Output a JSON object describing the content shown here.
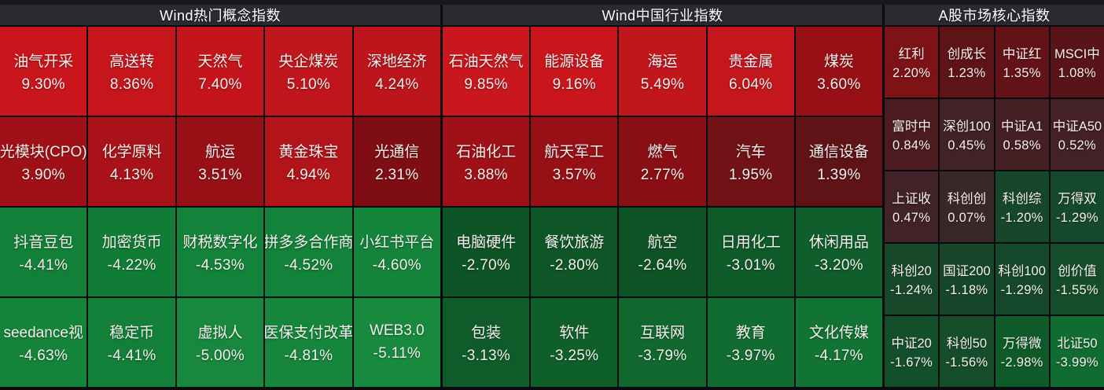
{
  "colors": {
    "header_bg": "#2a2b2f",
    "grid_line": "#0a0b0e",
    "top_strip": "#15171c",
    "text": "#f6f0ee",
    "positive_red_max": "#ca161d",
    "negative_green_max": "#188a3e"
  },
  "sections": [
    {
      "title": "Wind热门概念指数",
      "cells": [
        {
          "name": "油气开采",
          "change": "9.30%",
          "color": "#c9151c"
        },
        {
          "name": "高送转",
          "change": "8.36%",
          "color": "#c7151c"
        },
        {
          "name": "天然气",
          "change": "7.40%",
          "color": "#c5151c"
        },
        {
          "name": "央企煤炭",
          "change": "5.10%",
          "color": "#c1161d"
        },
        {
          "name": "深地经济",
          "change": "4.24%",
          "color": "#bc151c"
        },
        {
          "name": "光模块(CPO)",
          "change": "3.90%",
          "color": "#a01117"
        },
        {
          "name": "化学原料",
          "change": "4.13%",
          "color": "#a81218"
        },
        {
          "name": "航运",
          "change": "3.51%",
          "color": "#971016"
        },
        {
          "name": "黄金珠宝",
          "change": "4.94%",
          "color": "#b21419"
        },
        {
          "name": "光通信",
          "change": "2.31%",
          "color": "#7e0e13"
        },
        {
          "name": "抖音豆包",
          "change": "-4.41%",
          "color": "#128039"
        },
        {
          "name": "加密货币",
          "change": "-4.22%",
          "color": "#107c36"
        },
        {
          "name": "财税数字化",
          "change": "-4.53%",
          "color": "#13823a"
        },
        {
          "name": "拼多多合作商",
          "change": "-4.52%",
          "color": "#13823a"
        },
        {
          "name": "小红书平台",
          "change": "-4.60%",
          "color": "#14843b"
        },
        {
          "name": "seedance视",
          "change": "-4.63%",
          "color": "#14843b"
        },
        {
          "name": "稳定币",
          "change": "-4.41%",
          "color": "#128039"
        },
        {
          "name": "虚拟人",
          "change": "-5.00%",
          "color": "#17883d"
        },
        {
          "name": "医保支付改革",
          "change": "-4.81%",
          "color": "#15863c"
        },
        {
          "name": "WEB3.0",
          "change": "-5.11%",
          "color": "#188a3e"
        }
      ]
    },
    {
      "title": "Wind中国行业指数",
      "cells": [
        {
          "name": "石油天然气",
          "change": "9.85%",
          "color": "#ca161d"
        },
        {
          "name": "能源设备",
          "change": "9.16%",
          "color": "#c8161c"
        },
        {
          "name": "海运",
          "change": "5.49%",
          "color": "#c2161d"
        },
        {
          "name": "贵金属",
          "change": "6.04%",
          "color": "#c3161d"
        },
        {
          "name": "煤炭",
          "change": "3.60%",
          "color": "#981016"
        },
        {
          "name": "石油化工",
          "change": "3.88%",
          "color": "#9f1117"
        },
        {
          "name": "航天军工",
          "change": "3.57%",
          "color": "#971016"
        },
        {
          "name": "燃气",
          "change": "2.77%",
          "color": "#890f14"
        },
        {
          "name": "汽车",
          "change": "1.95%",
          "color": "#701216"
        },
        {
          "name": "通信设备",
          "change": "1.39%",
          "color": "#601317"
        },
        {
          "name": "电脑硬件",
          "change": "-2.70%",
          "color": "#0d5426"
        },
        {
          "name": "餐饮旅游",
          "change": "-2.80%",
          "color": "#0e5627"
        },
        {
          "name": "航空",
          "change": "-2.64%",
          "color": "#0d5325"
        },
        {
          "name": "日用化工",
          "change": "-3.01%",
          "color": "#0e5a29"
        },
        {
          "name": "休闲用品",
          "change": "-3.20%",
          "color": "#0f5e2b"
        },
        {
          "name": "包装",
          "change": "-3.13%",
          "color": "#0f5c2a"
        },
        {
          "name": "软件",
          "change": "-3.25%",
          "color": "#0f5f2b"
        },
        {
          "name": "互联网",
          "change": "-3.79%",
          "color": "#10682f"
        },
        {
          "name": "教育",
          "change": "-3.97%",
          "color": "#116c31"
        },
        {
          "name": "文化传媒",
          "change": "-4.17%",
          "color": "#117334"
        }
      ]
    },
    {
      "title": "A股市场核心指数",
      "cells": [
        {
          "name": "红利",
          "change": "2.20%",
          "color": "#7d1217"
        },
        {
          "name": "创成长",
          "change": "1.23%",
          "color": "#5e1317"
        },
        {
          "name": "中证红",
          "change": "1.35%",
          "color": "#631317"
        },
        {
          "name": "MSCI中",
          "change": "1.08%",
          "color": "#581418"
        },
        {
          "name": "富时中",
          "change": "0.84%",
          "color": "#4b1b20"
        },
        {
          "name": "深创100",
          "change": "0.45%",
          "color": "#412226"
        },
        {
          "name": "中证A1",
          "change": "0.58%",
          "color": "#441f24"
        },
        {
          "name": "中证A50",
          "change": "0.52%",
          "color": "#432126"
        },
        {
          "name": "上证收",
          "change": "0.47%",
          "color": "#412226"
        },
        {
          "name": "科创创",
          "change": "0.07%",
          "color": "#3a272a"
        },
        {
          "name": "科创综",
          "change": "-1.20%",
          "color": "#17472a"
        },
        {
          "name": "万得双",
          "change": "-1.29%",
          "color": "#16492b"
        },
        {
          "name": "科创20",
          "change": "-1.24%",
          "color": "#17482a"
        },
        {
          "name": "国证200",
          "change": "-1.18%",
          "color": "#17472a"
        },
        {
          "name": "科创100",
          "change": "-1.29%",
          "color": "#16492b"
        },
        {
          "name": "创价值",
          "change": "-1.55%",
          "color": "#154d2b"
        },
        {
          "name": "中证20",
          "change": "-1.67%",
          "color": "#144f2c"
        },
        {
          "name": "科创50",
          "change": "-1.56%",
          "color": "#154d2b"
        },
        {
          "name": "万得微",
          "change": "-2.98%",
          "color": "#0e5a28"
        },
        {
          "name": "北证50",
          "change": "-3.99%",
          "color": "#116c31"
        }
      ]
    }
  ],
  "chart_data": {
    "type": "heatmap",
    "unit": "%",
    "legend": "red = gain, green = loss; brightness scales with magnitude",
    "groups": [
      {
        "title": "Wind热门概念指数",
        "points": [
          {
            "label": "油气开采",
            "value": 9.3
          },
          {
            "label": "高送转",
            "value": 8.36
          },
          {
            "label": "天然气",
            "value": 7.4
          },
          {
            "label": "央企煤炭",
            "value": 5.1
          },
          {
            "label": "深地经济",
            "value": 4.24
          },
          {
            "label": "光模块(CPO)",
            "value": 3.9
          },
          {
            "label": "化学原料",
            "value": 4.13
          },
          {
            "label": "航运",
            "value": 3.51
          },
          {
            "label": "黄金珠宝",
            "value": 4.94
          },
          {
            "label": "光通信",
            "value": 2.31
          },
          {
            "label": "抖音豆包",
            "value": -4.41
          },
          {
            "label": "加密货币",
            "value": -4.22
          },
          {
            "label": "财税数字化",
            "value": -4.53
          },
          {
            "label": "拼多多合作商",
            "value": -4.52
          },
          {
            "label": "小红书平台",
            "value": -4.6
          },
          {
            "label": "seedance视",
            "value": -4.63
          },
          {
            "label": "稳定币",
            "value": -4.41
          },
          {
            "label": "虚拟人",
            "value": -5.0
          },
          {
            "label": "医保支付改革",
            "value": -4.81
          },
          {
            "label": "WEB3.0",
            "value": -5.11
          }
        ]
      },
      {
        "title": "Wind中国行业指数",
        "points": [
          {
            "label": "石油天然气",
            "value": 9.85
          },
          {
            "label": "能源设备",
            "value": 9.16
          },
          {
            "label": "海运",
            "value": 5.49
          },
          {
            "label": "贵金属",
            "value": 6.04
          },
          {
            "label": "煤炭",
            "value": 3.6
          },
          {
            "label": "石油化工",
            "value": 3.88
          },
          {
            "label": "航天军工",
            "value": 3.57
          },
          {
            "label": "燃气",
            "value": 2.77
          },
          {
            "label": "汽车",
            "value": 1.95
          },
          {
            "label": "通信设备",
            "value": 1.39
          },
          {
            "label": "电脑硬件",
            "value": -2.7
          },
          {
            "label": "餐饮旅游",
            "value": -2.8
          },
          {
            "label": "航空",
            "value": -2.64
          },
          {
            "label": "日用化工",
            "value": -3.01
          },
          {
            "label": "休闲用品",
            "value": -3.2
          },
          {
            "label": "包装",
            "value": -3.13
          },
          {
            "label": "软件",
            "value": -3.25
          },
          {
            "label": "互联网",
            "value": -3.79
          },
          {
            "label": "教育",
            "value": -3.97
          },
          {
            "label": "文化传媒",
            "value": -4.17
          }
        ]
      },
      {
        "title": "A股市场核心指数",
        "points": [
          {
            "label": "红利",
            "value": 2.2
          },
          {
            "label": "创成长",
            "value": 1.23
          },
          {
            "label": "中证红",
            "value": 1.35
          },
          {
            "label": "MSCI中",
            "value": 1.08
          },
          {
            "label": "富时中",
            "value": 0.84
          },
          {
            "label": "深创100",
            "value": 0.45
          },
          {
            "label": "中证A1",
            "value": 0.58
          },
          {
            "label": "中证A50",
            "value": 0.52
          },
          {
            "label": "上证收",
            "value": 0.47
          },
          {
            "label": "科创创",
            "value": 0.07
          },
          {
            "label": "科创综",
            "value": -1.2
          },
          {
            "label": "万得双",
            "value": -1.29
          },
          {
            "label": "科创20",
            "value": -1.24
          },
          {
            "label": "国证200",
            "value": -1.18
          },
          {
            "label": "科创100",
            "value": -1.29
          },
          {
            "label": "创价值",
            "value": -1.55
          },
          {
            "label": "中证20",
            "value": -1.67
          },
          {
            "label": "科创50",
            "value": -1.56
          },
          {
            "label": "万得微",
            "value": -2.98
          },
          {
            "label": "北证50",
            "value": -3.99
          }
        ]
      }
    ]
  }
}
